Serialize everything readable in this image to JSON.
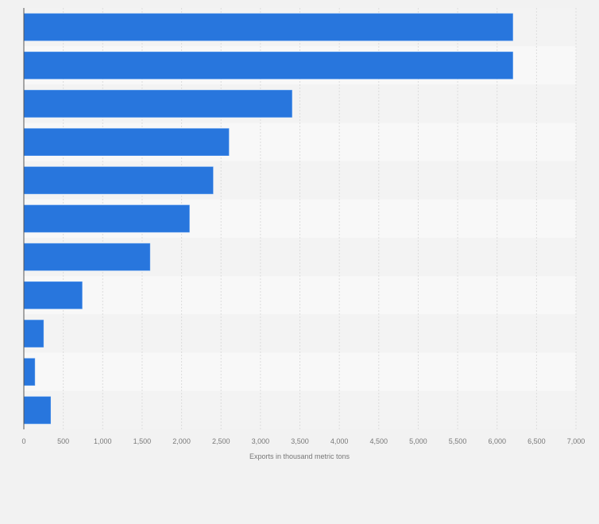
{
  "chart_data": {
    "type": "bar",
    "orientation": "horizontal",
    "title": "",
    "xlabel": "Exports in thousand metric tons",
    "ylabel": "",
    "categories": [
      "",
      "",
      "",
      "",
      "",
      "",
      "",
      "",
      "",
      "",
      ""
    ],
    "values": [
      6200,
      6200,
      3400,
      2600,
      2400,
      2100,
      1600,
      740,
      250,
      140,
      340
    ],
    "xlim": [
      0,
      7000
    ],
    "xticks": [
      0,
      500,
      1000,
      1500,
      2000,
      2500,
      3000,
      3500,
      4000,
      4500,
      5000,
      5500,
      6000,
      6500,
      7000
    ],
    "xtick_labels": [
      "0",
      "500",
      "1,000",
      "1,500",
      "2,000",
      "2,500",
      "3,000",
      "3,500",
      "4,000",
      "4,500",
      "5,000",
      "5,500",
      "6,000",
      "6,500",
      "7,000"
    ],
    "grid": true,
    "bar_color": "#2876dd"
  }
}
